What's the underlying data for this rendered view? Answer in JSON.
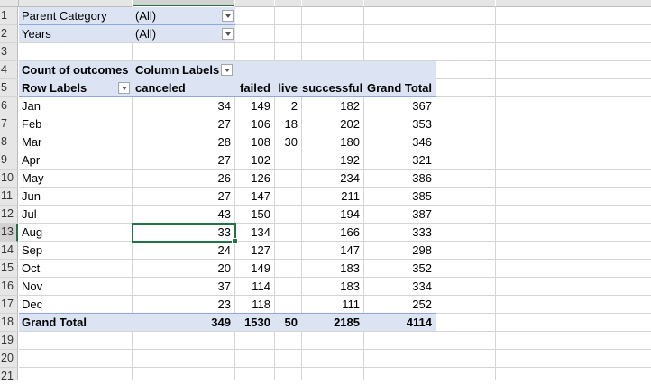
{
  "rows": [
    "1",
    "2",
    "3",
    "4",
    "5",
    "6",
    "7",
    "8",
    "9",
    "10",
    "11",
    "12",
    "13",
    "14",
    "15",
    "16",
    "17",
    "18",
    "19",
    "20",
    "21"
  ],
  "filters": [
    {
      "label": "Parent Category",
      "value": "(All)"
    },
    {
      "label": "Years",
      "value": "(All)"
    }
  ],
  "pivot": {
    "corner_label": "Count of outcomes",
    "column_labels": "Column Labels",
    "row_labels": "Row Labels",
    "headers": [
      "canceled",
      "failed",
      "live",
      "successful",
      "Grand Total"
    ],
    "data": [
      {
        "month": "Jan",
        "canceled": "34",
        "failed": "149",
        "live": "2",
        "successful": "182",
        "total": "367"
      },
      {
        "month": "Feb",
        "canceled": "27",
        "failed": "106",
        "live": "18",
        "successful": "202",
        "total": "353"
      },
      {
        "month": "Mar",
        "canceled": "28",
        "failed": "108",
        "live": "30",
        "successful": "180",
        "total": "346"
      },
      {
        "month": "Apr",
        "canceled": "27",
        "failed": "102",
        "live": "",
        "successful": "192",
        "total": "321"
      },
      {
        "month": "May",
        "canceled": "26",
        "failed": "126",
        "live": "",
        "successful": "234",
        "total": "386"
      },
      {
        "month": "Jun",
        "canceled": "27",
        "failed": "147",
        "live": "",
        "successful": "211",
        "total": "385"
      },
      {
        "month": "Jul",
        "canceled": "43",
        "failed": "150",
        "live": "",
        "successful": "194",
        "total": "387"
      },
      {
        "month": "Aug",
        "canceled": "33",
        "failed": "134",
        "live": "",
        "successful": "166",
        "total": "333"
      },
      {
        "month": "Sep",
        "canceled": "24",
        "failed": "127",
        "live": "",
        "successful": "147",
        "total": "298"
      },
      {
        "month": "Oct",
        "canceled": "20",
        "failed": "149",
        "live": "",
        "successful": "183",
        "total": "352"
      },
      {
        "month": "Nov",
        "canceled": "37",
        "failed": "114",
        "live": "",
        "successful": "183",
        "total": "334"
      },
      {
        "month": "Dec",
        "canceled": "23",
        "failed": "118",
        "live": "",
        "successful": "111",
        "total": "252"
      }
    ],
    "grand_total": {
      "label": "Grand Total",
      "canceled": "349",
      "failed": "1530",
      "live": "50",
      "successful": "2185",
      "total": "4114"
    }
  },
  "colors": {
    "accent": "#217346",
    "pivot_band": "#dce3f3",
    "pivot_line": "#8ea9db"
  }
}
